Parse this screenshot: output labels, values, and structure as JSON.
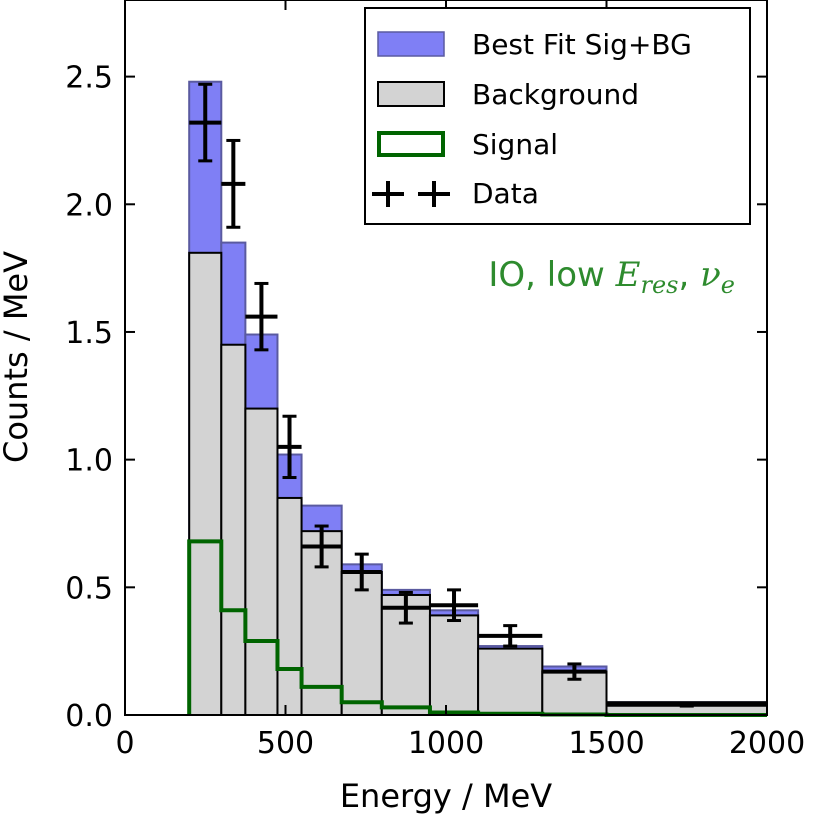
{
  "chart_data": {
    "type": "bar",
    "xlabel": "Energy / MeV",
    "ylabel": "Counts / MeV",
    "xlim": [
      0,
      2000
    ],
    "ylim": [
      0,
      2.8
    ],
    "x_ticks": [
      0,
      500,
      1000,
      1500,
      2000
    ],
    "x_tick_labels": [
      "0",
      "500",
      "1000",
      "1500",
      "2000"
    ],
    "y_ticks": [
      0.0,
      0.5,
      1.0,
      1.5,
      2.0,
      2.5
    ],
    "y_tick_labels": [
      "0.0",
      "0.5",
      "1.0",
      "1.5",
      "2.0",
      "2.5"
    ],
    "grid": false,
    "legend_position": "top-right",
    "bin_edges": [
      200,
      300,
      375,
      475,
      550,
      675,
      800,
      950,
      1100,
      1300,
      1500,
      2000
    ],
    "series": [
      {
        "name": "Best Fit Sig+BG",
        "style": "filled-step",
        "color": "#7f7ff5",
        "edge_color": "#5a5aa0",
        "values": [
          2.48,
          1.85,
          1.49,
          1.02,
          0.82,
          0.59,
          0.49,
          0.41,
          0.27,
          0.19,
          0.05
        ]
      },
      {
        "name": "Background",
        "style": "filled-step",
        "color": "#d3d3d3",
        "edge_color": "#000000",
        "values": [
          1.81,
          1.45,
          1.2,
          0.85,
          0.72,
          0.56,
          0.47,
          0.39,
          0.26,
          0.17,
          0.05
        ]
      },
      {
        "name": "Signal",
        "style": "step",
        "color": "#006400",
        "values": [
          0.68,
          0.41,
          0.29,
          0.18,
          0.11,
          0.05,
          0.03,
          0.01,
          0.005,
          0.002,
          0.0
        ]
      },
      {
        "name": "Data",
        "style": "errorbar",
        "color": "#000000",
        "points": [
          {
            "x": 250,
            "xerr": 50,
            "y": 2.32,
            "yerr": 0.15
          },
          {
            "x": 337.5,
            "xerr": 37.5,
            "y": 2.08,
            "yerr": 0.17
          },
          {
            "x": 425,
            "xerr": 50,
            "y": 1.56,
            "yerr": 0.13
          },
          {
            "x": 512.5,
            "xerr": 37.5,
            "y": 1.05,
            "yerr": 0.12
          },
          {
            "x": 612.5,
            "xerr": 62.5,
            "y": 0.66,
            "yerr": 0.08
          },
          {
            "x": 737.5,
            "xerr": 62.5,
            "y": 0.56,
            "yerr": 0.07
          },
          {
            "x": 875,
            "xerr": 75,
            "y": 0.42,
            "yerr": 0.06
          },
          {
            "x": 1025,
            "xerr": 75,
            "y": 0.43,
            "yerr": 0.06
          },
          {
            "x": 1200,
            "xerr": 100,
            "y": 0.31,
            "yerr": 0.04
          },
          {
            "x": 1400,
            "xerr": 100,
            "y": 0.17,
            "yerr": 0.03
          },
          {
            "x": 1750,
            "xerr": 250,
            "y": 0.04,
            "yerr": 0.005
          }
        ]
      }
    ],
    "annotation": {
      "text_prefix": "IO, low ",
      "math_main": "E",
      "math_sub": "res",
      "separator": ", ",
      "math_main2": "ν",
      "math_sub2": "e",
      "color": "#2e8b2e"
    }
  }
}
